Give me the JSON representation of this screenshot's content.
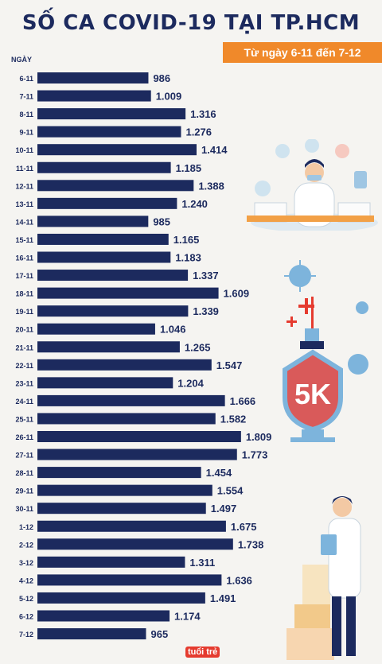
{
  "header": {
    "title": "SỐ CA COVID-19 TẠI TP.HCM",
    "subtitle": "Từ ngày 6-11 đến 7-12",
    "column_label": "NGÀY"
  },
  "logo_text": "tuổi trẻ",
  "colors": {
    "bar": "#1c2a5e",
    "text": "#1c2a5e",
    "accent": "#f0892a",
    "background": "#f5f4f1"
  },
  "chart_data": {
    "type": "bar",
    "orientation": "horizontal",
    "categories": [
      "6-11",
      "7-11",
      "8-11",
      "9-11",
      "10-11",
      "11-11",
      "12-11",
      "13-11",
      "14-11",
      "15-11",
      "16-11",
      "17-11",
      "18-11",
      "19-11",
      "20-11",
      "21-11",
      "22-11",
      "23-11",
      "24-11",
      "25-11",
      "26-11",
      "27-11",
      "28-11",
      "29-11",
      "30-11",
      "1-12",
      "2-12",
      "3-12",
      "4-12",
      "5-12",
      "6-12",
      "7-12"
    ],
    "values": [
      986,
      1009,
      1316,
      1276,
      1414,
      1185,
      1388,
      1240,
      985,
      1165,
      1183,
      1337,
      1609,
      1339,
      1046,
      1265,
      1547,
      1204,
      1666,
      1582,
      1809,
      1773,
      1454,
      1554,
      1497,
      1675,
      1738,
      1311,
      1636,
      1491,
      1174,
      965
    ],
    "value_labels": [
      "986",
      "1.009",
      "1.316",
      "1.276",
      "1.414",
      "1.185",
      "1.388",
      "1.240",
      "985",
      "1.165",
      "1.183",
      "1.337",
      "1.609",
      "1.339",
      "1.046",
      "1.265",
      "1.547",
      "1.204",
      "1.666",
      "1.582",
      "1.809",
      "1.773",
      "1.454",
      "1.554",
      "1.497",
      "1.675",
      "1.738",
      "1.311",
      "1.636",
      "1.491",
      "1.174",
      "965"
    ],
    "title": "SỐ CA COVID-19 TẠI TP.HCM",
    "subtitle": "Từ ngày 6-11 đến 7-12",
    "xlabel": "",
    "ylabel": "NGÀY",
    "xlim": [
      0,
      1810
    ],
    "grid": false,
    "legend": "none"
  }
}
